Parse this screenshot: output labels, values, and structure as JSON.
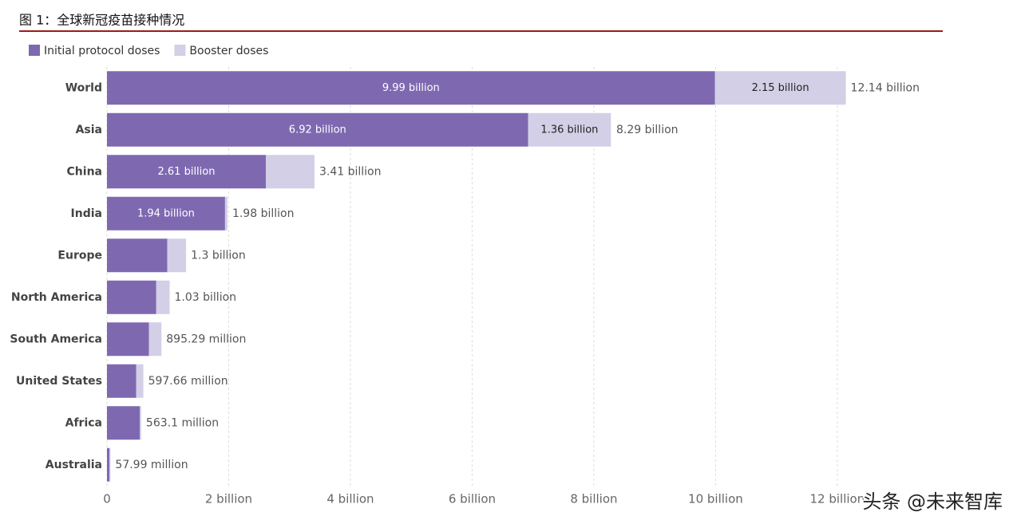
{
  "chart_data": {
    "type": "stacked-barh",
    "title": "图 1：全球新冠疫苗接种情况",
    "categories": [
      "World",
      "Asia",
      "China",
      "India",
      "Europe",
      "North America",
      "South America",
      "United States",
      "Africa",
      "Australia"
    ],
    "series": [
      {
        "name": "Initial protocol doses",
        "color": "#7e69b1",
        "values": [
          9.99,
          6.92,
          2.61,
          1.94,
          0.99,
          0.81,
          0.69,
          0.48,
          0.54,
          0.04
        ],
        "value_labels": [
          "9.99 billion",
          "6.92 billion",
          "2.61 billion",
          "1.94 billion",
          null,
          null,
          null,
          null,
          null,
          null
        ]
      },
      {
        "name": "Booster doses",
        "color": "#d3cfe6",
        "values": [
          2.15,
          1.36,
          0.8,
          0.04,
          0.31,
          0.22,
          0.205,
          0.118,
          0.023,
          0.018
        ],
        "value_labels": [
          "2.15 billion",
          "1.36 billion",
          null,
          null,
          null,
          null,
          null,
          null,
          null,
          null
        ]
      }
    ],
    "totals": {
      "values": [
        12.14,
        8.29,
        3.41,
        1.98,
        1.3,
        1.03,
        0.89529,
        0.59766,
        0.5631,
        0.05799
      ],
      "value_labels": [
        "12.14 billion",
        "8.29 billion",
        "3.41 billion",
        "1.98 billion",
        "1.3 billion",
        "1.03 billion",
        "895.29 million",
        "597.66 million",
        "563.1 million",
        "57.99 million"
      ]
    },
    "xlim": [
      0,
      12.5
    ],
    "xticks": [
      0,
      {
        "value": 2,
        "label": "2 billion"
      },
      {
        "value": 4,
        "label": "4 billion"
      },
      {
        "value": 6,
        "label": "6 billion"
      },
      {
        "value": 8,
        "label": "8 billion"
      },
      {
        "value": 10,
        "label": "10 billion"
      },
      {
        "value": 12,
        "label": "12 billion"
      }
    ],
    "grid": true,
    "watermark": "头条 @未来智库"
  }
}
